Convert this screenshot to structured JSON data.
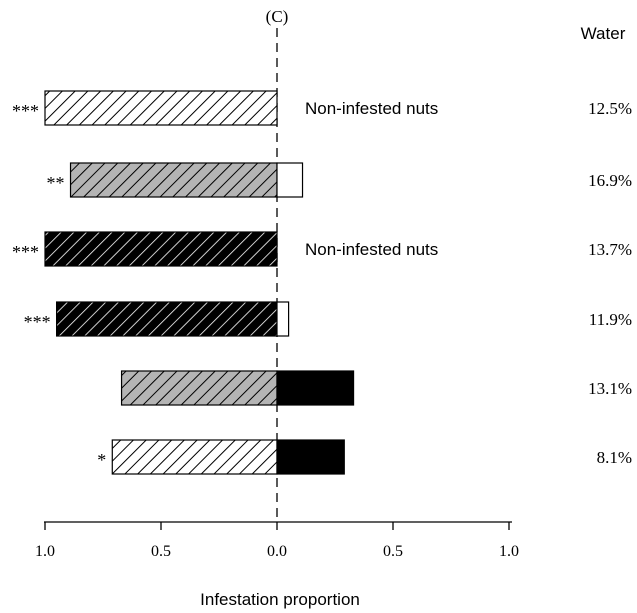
{
  "chart_data": {
    "type": "bar",
    "panel_label": "(C)",
    "column_header": "Water",
    "xlabel": "Infestation proportion",
    "xlim": [
      -1.0,
      1.0
    ],
    "xticks": [
      -1.0,
      -0.5,
      0.0,
      0.5,
      1.0
    ],
    "xtick_labels": [
      "1.0",
      "0.5",
      "0.0",
      "0.5",
      "1.0"
    ],
    "rows": [
      {
        "left": 1.0,
        "left_fill": "white-hatched",
        "right": null,
        "right_fill": null,
        "right_text": "Non-infested nuts",
        "significance": "***",
        "water": "12.5%"
      },
      {
        "left": 0.89,
        "left_fill": "grey-hatched",
        "right": 0.11,
        "right_fill": "white",
        "right_text": "",
        "significance": "**",
        "water": "16.9%"
      },
      {
        "left": 1.0,
        "left_fill": "black-hatched",
        "right": null,
        "right_fill": null,
        "right_text": "Non-infested nuts",
        "significance": "***",
        "water": "13.7%"
      },
      {
        "left": 0.95,
        "left_fill": "black-hatched",
        "right": 0.05,
        "right_fill": "white",
        "right_text": "",
        "significance": "***",
        "water": "11.9%"
      },
      {
        "left": 0.67,
        "left_fill": "grey-hatched",
        "right": 0.33,
        "right_fill": "black",
        "right_text": "",
        "significance": "",
        "water": "13.1%"
      },
      {
        "left": 0.71,
        "left_fill": "white-hatched",
        "right": 0.29,
        "right_fill": "black",
        "right_text": "",
        "significance": "*",
        "water": "8.1%"
      }
    ],
    "colors": {
      "white": "#ffffff",
      "grey": "#b4b4b4",
      "black": "#000000",
      "hatch_on_light": "#000000",
      "hatch_on_dark": "#ffffff"
    }
  }
}
